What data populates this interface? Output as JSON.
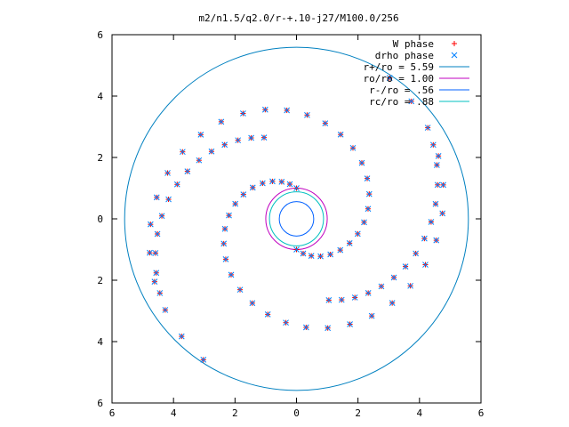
{
  "chart_data": {
    "type": "scatter",
    "title": "m2/n1.5/q2.0/r-+.10-j27/M100.0/256",
    "xlim": [
      -6,
      6
    ],
    "ylim": [
      -6,
      6
    ],
    "x_ticks": [
      "6",
      "4",
      "2",
      "0",
      "2",
      "4",
      "6"
    ],
    "y_ticks": [
      "6",
      "4",
      "2",
      "0",
      "2",
      "4",
      "6"
    ],
    "grid": false,
    "legend_position": "top-right",
    "colors": {
      "w_phase": "#ff0000",
      "drho_phase": "#0080ff",
      "r_plus": "#0080c0",
      "r_o": "#c000c0",
      "r_minus": "#0060ff",
      "r_c": "#00c0c0"
    },
    "series": [
      {
        "name": "W phase",
        "marker": "+",
        "arms": [
          {
            "r0": 1.0,
            "th0": 1.5708,
            "dr": 0.15,
            "dth": 0.19,
            "n": 31
          },
          {
            "r0": 1.0,
            "th0": 4.7124,
            "dr": 0.15,
            "dth": 0.19,
            "n": 31
          },
          {
            "r0": 2.85,
            "th0": 1.95,
            "dr": 0.17,
            "dth": 0.13,
            "n": 14
          },
          {
            "r0": 2.85,
            "th0": 5.09,
            "dr": 0.17,
            "dth": 0.13,
            "n": 14
          }
        ],
        "rmax": 5.5
      },
      {
        "name": "drho phase",
        "marker": "x",
        "arms": [
          {
            "r0": 1.0,
            "th0": 1.5708,
            "dr": 0.15,
            "dth": 0.19,
            "n": 31
          },
          {
            "r0": 1.0,
            "th0": 4.7124,
            "dr": 0.15,
            "dth": 0.19,
            "n": 31
          },
          {
            "r0": 2.85,
            "th0": 1.95,
            "dr": 0.17,
            "dth": 0.13,
            "n": 14
          },
          {
            "r0": 2.85,
            "th0": 5.09,
            "dr": 0.17,
            "dth": 0.13,
            "n": 14
          }
        ],
        "rmax": 5.5
      },
      {
        "name": "r+/ro = 5.59",
        "type": "circle",
        "radius": 5.59
      },
      {
        "name": "ro/ro = 1.00",
        "type": "circle",
        "radius": 1.0
      },
      {
        "name": "r-/ro = .56",
        "type": "circle",
        "radius": 0.56
      },
      {
        "name": "rc/ro = .88",
        "type": "circle",
        "radius": 0.88
      }
    ]
  }
}
